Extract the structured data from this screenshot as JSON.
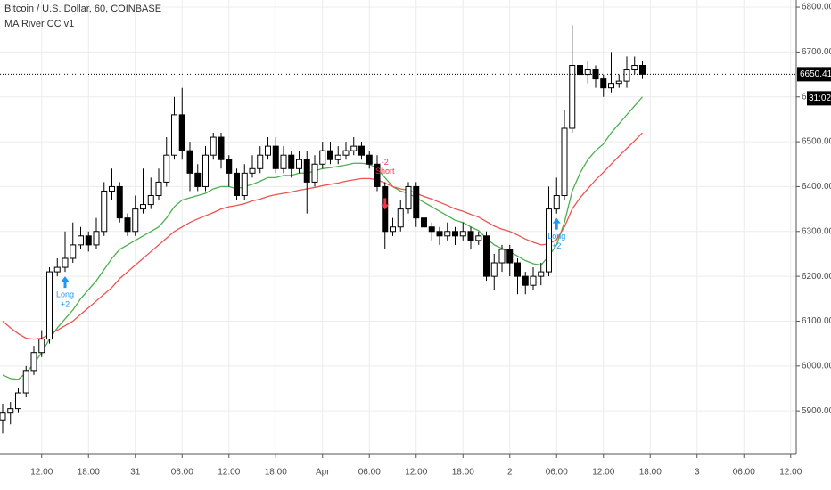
{
  "chart_data": {
    "type": "candlestick",
    "title": "Bitcoin / U.S. Dollar, 60, COINBASE",
    "indicator": "MA River CC v1",
    "categories": [
      null,
      null,
      null,
      null,
      null,
      "12:00",
      null,
      null,
      null,
      null,
      null,
      "18:00",
      null,
      null,
      null,
      null,
      null,
      "31",
      null,
      null,
      null,
      null,
      null,
      "06:00",
      null,
      null,
      null,
      null,
      null,
      "12:00",
      null,
      null,
      null,
      null,
      null,
      "18:00",
      null,
      null,
      null,
      null,
      null,
      "Apr",
      null,
      null,
      null,
      null,
      null,
      "06:00",
      null,
      null,
      null,
      null,
      null,
      "12:00",
      null,
      null,
      null,
      null,
      null,
      "18:00",
      null,
      null,
      null,
      null,
      null,
      "2",
      null,
      null,
      null,
      null,
      null,
      "06:00",
      null,
      null,
      null,
      null,
      null,
      "12:00",
      null,
      null,
      null,
      null,
      null,
      "18:00",
      null,
      null,
      null,
      null,
      null,
      "3",
      null,
      null,
      null,
      null,
      null,
      "06:00",
      null,
      null,
      null,
      null,
      null,
      "12:00"
    ],
    "open": [
      5880,
      5895,
      5905,
      5940,
      5990,
      6030,
      6060,
      6210,
      6220,
      6240,
      6270,
      6290,
      6270,
      6300,
      6390,
      6400,
      6330,
      6300,
      6350,
      6360,
      6380,
      6410,
      6470,
      6560,
      6480,
      6430,
      6400,
      6470,
      6510,
      6460,
      6430,
      6380,
      6430,
      6440,
      6470,
      6490,
      6440,
      6470,
      6440,
      6460,
      6410,
      6450,
      6480,
      6460,
      6470,
      6480,
      6490,
      6470,
      6450,
      6400,
      6300,
      6310,
      6350,
      6400,
      6330,
      6310,
      6300,
      6290,
      6300,
      6290,
      6300,
      6280,
      6290,
      6200,
      6230,
      6260,
      6230,
      6200,
      6180,
      6200,
      6210,
      6350,
      6380,
      6530,
      6670,
      6650,
      6660,
      6640,
      6620,
      6630,
      6635,
      6660,
      6670,
      null,
      null,
      null,
      null,
      null,
      null,
      null,
      null,
      null,
      null,
      null,
      null,
      null,
      null,
      null,
      null,
      null,
      null,
      null
    ],
    "high": [
      5915,
      5920,
      5950,
      6000,
      6045,
      6080,
      6220,
      6240,
      6300,
      6320,
      6310,
      6300,
      6330,
      6410,
      6440,
      6410,
      6340,
      6380,
      6440,
      6420,
      6440,
      6510,
      6600,
      6620,
      6500,
      6450,
      6490,
      6520,
      6520,
      6470,
      6440,
      6450,
      6470,
      6490,
      6510,
      6510,
      6490,
      6480,
      6480,
      6480,
      6470,
      6500,
      6500,
      6490,
      6500,
      6510,
      6500,
      6480,
      6470,
      6410,
      6330,
      6370,
      6410,
      6410,
      6340,
      6320,
      6310,
      6320,
      6310,
      6320,
      6310,
      6300,
      6300,
      6250,
      6270,
      6270,
      6240,
      6210,
      6220,
      6230,
      6400,
      6420,
      6570,
      6760,
      6740,
      6680,
      6670,
      6650,
      6700,
      6650,
      6690,
      6690,
      6680,
      null,
      null,
      null,
      null,
      null,
      null,
      null,
      null,
      null,
      null,
      null,
      null,
      null,
      null,
      null,
      null,
      null,
      null,
      null
    ],
    "low": [
      5850,
      5870,
      5895,
      5930,
      5980,
      6020,
      6050,
      6200,
      6210,
      6230,
      6260,
      6255,
      6260,
      6290,
      6370,
      6320,
      6290,
      6290,
      6340,
      6350,
      6370,
      6400,
      6460,
      6460,
      6390,
      6390,
      6390,
      6460,
      6440,
      6400,
      6370,
      6370,
      6420,
      6430,
      6460,
      6430,
      6430,
      6420,
      6430,
      6340,
      6400,
      6440,
      6450,
      6450,
      6460,
      6470,
      6460,
      6440,
      6390,
      6260,
      6290,
      6300,
      6340,
      6310,
      6290,
      6280,
      6270,
      6280,
      6270,
      6280,
      6260,
      6270,
      6190,
      6170,
      6210,
      6200,
      6160,
      6160,
      6170,
      6180,
      6200,
      6340,
      6370,
      6520,
      6600,
      6630,
      6620,
      6600,
      6610,
      6620,
      6620,
      6650,
      6640,
      null,
      null,
      null,
      null,
      null,
      null,
      null,
      null,
      null,
      null,
      null,
      null,
      null,
      null,
      null,
      null,
      null,
      null,
      null
    ],
    "close": [
      5895,
      5905,
      5940,
      5990,
      6030,
      6060,
      6210,
      6220,
      6240,
      6270,
      6290,
      6270,
      6300,
      6390,
      6400,
      6330,
      6300,
      6350,
      6360,
      6380,
      6410,
      6470,
      6560,
      6480,
      6430,
      6400,
      6470,
      6510,
      6460,
      6430,
      6380,
      6430,
      6440,
      6470,
      6490,
      6440,
      6470,
      6440,
      6460,
      6410,
      6450,
      6480,
      6460,
      6470,
      6480,
      6490,
      6470,
      6450,
      6400,
      6300,
      6310,
      6350,
      6400,
      6330,
      6310,
      6300,
      6290,
      6300,
      6290,
      6300,
      6280,
      6290,
      6200,
      6230,
      6260,
      6230,
      6200,
      6180,
      6200,
      6210,
      6350,
      6380,
      6530,
      6670,
      6650,
      6660,
      6640,
      6620,
      6630,
      6635,
      6660,
      6670,
      6650.41,
      null,
      null,
      null,
      null,
      null,
      null,
      null,
      null,
      null,
      null,
      null,
      null,
      null,
      null,
      null,
      null,
      null,
      null,
      null
    ],
    "ma_lines": [
      {
        "color": "#4caf50",
        "values": [
          5980,
          5972,
          5970,
          5985,
          6005,
          6030,
          6060,
          6085,
          6105,
          6125,
          6150,
          6170,
          6190,
          6215,
          6240,
          6260,
          6270,
          6280,
          6290,
          6300,
          6310,
          6330,
          6355,
          6370,
          6375,
          6380,
          6385,
          6395,
          6400,
          6400,
          6395,
          6400,
          6405,
          6412,
          6420,
          6420,
          6425,
          6425,
          6430,
          6430,
          6435,
          6440,
          6442,
          6445,
          6448,
          6452,
          6452,
          6450,
          6440,
          6420,
          6400,
          6390,
          6385,
          6375,
          6365,
          6355,
          6345,
          6335,
          6325,
          6320,
          6310,
          6302,
          6285,
          6270,
          6262,
          6255,
          6245,
          6235,
          6228,
          6225,
          6245,
          6270,
          6320,
          6390,
          6430,
          6460,
          6480,
          6495,
          6520,
          6540,
          6560,
          6580,
          6600,
          null,
          null,
          null,
          null,
          null,
          null,
          null,
          null,
          null,
          null,
          null,
          null,
          null,
          null,
          null,
          null,
          null,
          null,
          null
        ]
      },
      {
        "color": "#ef5350",
        "values": [
          6100,
          6085,
          6072,
          6062,
          6060,
          6062,
          6070,
          6080,
          6090,
          6100,
          6115,
          6130,
          6145,
          6160,
          6175,
          6195,
          6210,
          6225,
          6240,
          6255,
          6270,
          6285,
          6300,
          6310,
          6320,
          6328,
          6335,
          6342,
          6350,
          6355,
          6358,
          6362,
          6368,
          6372,
          6378,
          6382,
          6385,
          6388,
          6392,
          6395,
          6398,
          6402,
          6405,
          6408,
          6412,
          6415,
          6418,
          6418,
          6415,
          6408,
          6400,
          6395,
          6392,
          6385,
          6378,
          6372,
          6365,
          6358,
          6350,
          6345,
          6338,
          6332,
          6322,
          6312,
          6305,
          6300,
          6292,
          6283,
          6276,
          6270,
          6272,
          6282,
          6310,
          6350,
          6375,
          6395,
          6415,
          6432,
          6450,
          6468,
          6485,
          6502,
          6520,
          null,
          null,
          null,
          null,
          null,
          null,
          null,
          null,
          null,
          null,
          null,
          null,
          null,
          null,
          null,
          null,
          null,
          null,
          null
        ]
      }
    ],
    "signals": [
      {
        "label": "Long",
        "qty": "+2",
        "color": "#2196f3"
      },
      {
        "label": "Short",
        "qty": "-2",
        "color": "#f23645"
      },
      {
        "label": "Long",
        "qty": "+2",
        "color": "#2196f3"
      }
    ],
    "last_price": 6650.41,
    "countdown": "31:02",
    "ylim": [
      5803,
      6816
    ],
    "yticks": [
      {
        "value": 5900,
        "label": "5900.00"
      },
      {
        "value": 6000,
        "label": "6000.00"
      },
      {
        "value": 6100,
        "label": "6100.00"
      },
      {
        "value": 6200,
        "label": "6200.00"
      },
      {
        "value": 6300,
        "label": "6300.00"
      },
      {
        "value": 6400,
        "label": "6400.00"
      },
      {
        "value": 6500,
        "label": "6500.00"
      },
      {
        "value": 6600,
        "label": "6600.00"
      },
      {
        "value": 6700,
        "label": "6700.00"
      },
      {
        "value": 6800,
        "label": "6800.00"
      }
    ],
    "grid": true
  }
}
